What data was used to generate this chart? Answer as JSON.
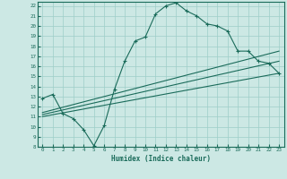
{
  "xlabel": "Humidex (Indice chaleur)",
  "bg_color": "#cce8e4",
  "grid_color": "#9ecec8",
  "line_color": "#1a6b5a",
  "xlim": [
    -0.5,
    23.5
  ],
  "ylim": [
    8,
    22.4
  ],
  "xticks": [
    0,
    1,
    2,
    3,
    4,
    5,
    6,
    7,
    8,
    9,
    10,
    11,
    12,
    13,
    14,
    15,
    16,
    17,
    18,
    19,
    20,
    21,
    22,
    23
  ],
  "yticks": [
    8,
    9,
    10,
    11,
    12,
    13,
    14,
    15,
    16,
    17,
    18,
    19,
    20,
    21,
    22
  ],
  "main_line_x": [
    0,
    1,
    2,
    3,
    4,
    5,
    6,
    7,
    8,
    9,
    10,
    11,
    12,
    13,
    14,
    15,
    16,
    17,
    18,
    19,
    20,
    21,
    22,
    23
  ],
  "main_line_y": [
    12.8,
    13.2,
    11.3,
    10.8,
    9.7,
    8.1,
    10.1,
    13.7,
    16.5,
    18.5,
    18.9,
    21.2,
    22.0,
    22.3,
    21.5,
    21.0,
    20.2,
    20.0,
    19.5,
    17.5,
    17.5,
    16.5,
    16.3,
    15.3
  ],
  "reg_line1_x": [
    0,
    23
  ],
  "reg_line1_y": [
    11.0,
    15.3
  ],
  "reg_line2_x": [
    0,
    23
  ],
  "reg_line2_y": [
    11.2,
    16.5
  ],
  "reg_line3_x": [
    0,
    23
  ],
  "reg_line3_y": [
    11.4,
    17.5
  ]
}
